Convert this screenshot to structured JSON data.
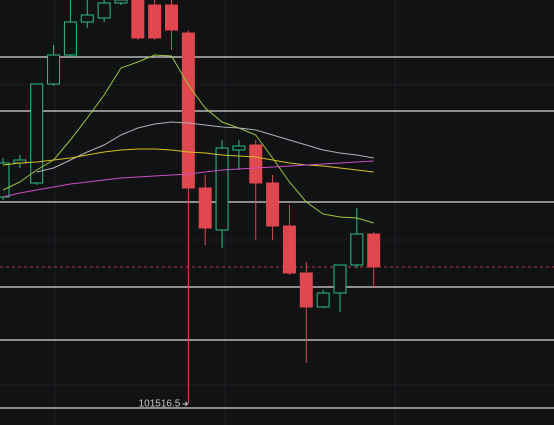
{
  "chart_data": {
    "type": "candlestick",
    "ylim": [
      101306.5,
      105556.5
    ],
    "up_color": "#2ebd85",
    "down_color": "#e0474f",
    "open": [
      103586.5,
      103926.5,
      103726.5,
      104716.5,
      105006.5,
      105336.5,
      105376.5,
      105526.5,
      105556.5,
      105506.5,
      105506.5,
      105226.5,
      103676.5,
      103256.5,
      104056.5,
      104106.5,
      103726.5,
      103296.5,
      102826.5,
      102486.5,
      102626.5,
      102906.5,
      103216.5
    ],
    "high": [
      103976.5,
      104006.5,
      104716.5,
      105106.5,
      105556.5,
      105556.5,
      105556.5,
      105556.5,
      105556.5,
      105556.5,
      105556.5,
      105256.5,
      103806.5,
      104156.5,
      104156.5,
      104156.5,
      103806.5,
      103506.5,
      102936.5,
      102656.5,
      102906.5,
      103476.5,
      103236.5
    ],
    "low": [
      103556.5,
      103876.5,
      103706.5,
      104696.5,
      104986.5,
      105276.5,
      105336.5,
      105506.5,
      105156.5,
      105156.5,
      105056.5,
      101516.5,
      103106.5,
      103076.5,
      103856.5,
      103156.5,
      103156.5,
      102806.5,
      101926.5,
      102476.5,
      102436.5,
      102876.5,
      102686.5
    ],
    "close": [
      103926.5,
      103956.5,
      104716.5,
      105006.5,
      105336.5,
      105406.5,
      105526.5,
      105556.5,
      105176.5,
      105176.5,
      105256.5,
      103676.5,
      103276.5,
      104076.5,
      104096.5,
      103726.5,
      103296.5,
      102826.5,
      102486.5,
      102626.5,
      102906.5,
      103216.5,
      102886.5
    ],
    "moving_averages": [
      {
        "color": "#9bc53d",
        "values": [
          103656.5,
          103736.5,
          103856.5,
          103956.5,
          104156.5,
          104376.5,
          104606.5,
          104876.5,
          104936.5,
          105006.5,
          104996.5,
          104706.5,
          104476.5,
          104336.5,
          104276.5,
          104206.5,
          103976.5,
          103736.5,
          103536.5,
          103416.5,
          103386.5,
          103376.5,
          103326.5
        ]
      },
      {
        "color": "#b0b0b8",
        "values": [
          null,
          null,
          103836.5,
          103876.5,
          103956.5,
          104036.5,
          104106.5,
          104206.5,
          104276.5,
          104316.5,
          104336.5,
          104326.5,
          104306.5,
          104286.5,
          104276.5,
          104256.5,
          104206.5,
          104156.5,
          104106.5,
          104056.5,
          104026.5,
          104006.5,
          103976.5
        ]
      },
      {
        "color": "#d4c021",
        "values": [
          103906.5,
          103926.5,
          103936.5,
          103956.5,
          103976.5,
          104006.5,
          104036.5,
          104056.5,
          104066.5,
          104066.5,
          104056.5,
          104036.5,
          104026.5,
          104006.5,
          103996.5,
          103986.5,
          103956.5,
          103926.5,
          103906.5,
          103896.5,
          103876.5,
          103856.5,
          103836.5
        ]
      },
      {
        "color": "#c94fc4",
        "values": [
          103586.5,
          103626.5,
          103656.5,
          103686.5,
          103716.5,
          103736.5,
          103756.5,
          103776.5,
          103786.5,
          103796.5,
          103806.5,
          103816.5,
          103836.5,
          103856.5,
          103866.5,
          103876.5,
          103886.5,
          103896.5,
          103906.5,
          103916.5,
          103926.5,
          103936.5,
          103946.5
        ]
      }
    ],
    "levels": {
      "color": "#d9d9d9",
      "values": [
        104986.5,
        104446.5,
        103536.5,
        102686.5,
        102156.5,
        101476.5
      ]
    },
    "last_price": {
      "color": "#e0474f",
      "value": 102886.5
    },
    "low_annotation": 101516.5
  }
}
